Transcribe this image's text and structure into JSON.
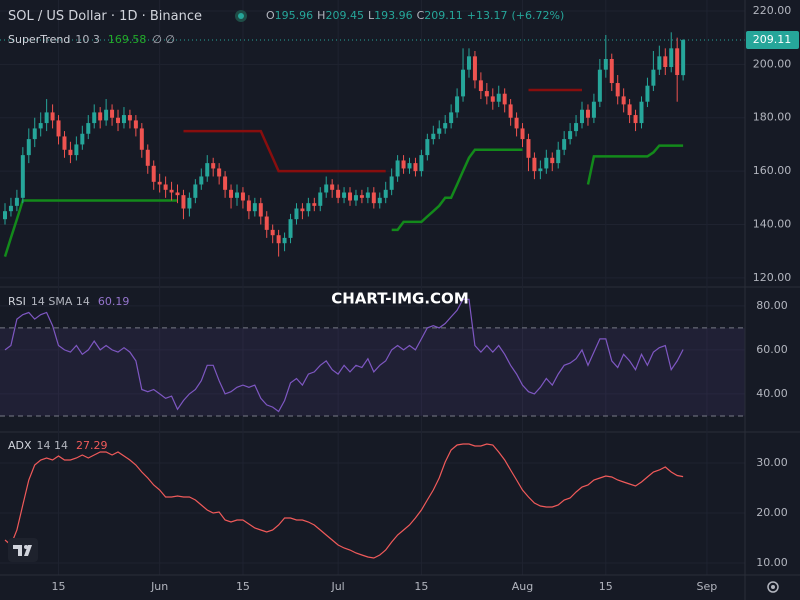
{
  "chart_data": [
    {
      "type": "candlestick",
      "title": "SOL / US Dollar · 1D · Binance",
      "ohlc_letters": [
        "O",
        "H",
        "L",
        "C"
      ],
      "change": {
        "value": 13.17,
        "label": "+13.17"
      },
      "change_pct": {
        "value": 6.72,
        "label": "(+6.72%)"
      },
      "up_color": "#26a69a",
      "down_color": "#ef5350",
      "open": [
        142,
        145,
        147,
        150,
        166,
        172,
        176,
        178,
        182,
        179,
        173,
        168,
        166,
        170,
        174,
        178,
        182,
        179,
        183,
        180,
        178,
        181,
        179,
        176,
        168,
        162,
        156,
        155,
        153,
        152,
        151,
        146,
        150,
        155,
        158,
        163,
        161,
        158,
        153,
        150,
        152,
        149,
        145,
        148,
        143,
        138,
        136,
        133,
        135,
        142,
        146,
        145,
        148,
        147,
        152,
        155,
        153,
        150,
        152,
        149,
        151,
        150,
        152,
        148,
        150,
        153,
        158,
        164,
        161,
        163,
        160,
        166,
        172,
        174,
        176,
        178,
        182,
        188,
        198,
        203,
        194,
        190,
        188,
        186,
        189,
        185,
        180,
        176,
        172,
        165,
        160,
        161,
        165,
        163,
        168,
        172,
        175,
        178,
        183,
        180,
        186,
        198,
        202,
        193,
        188,
        185,
        181,
        178,
        186,
        192,
        198,
        203,
        199,
        206,
        195.96
      ],
      "high": [
        148,
        150,
        153,
        169,
        176,
        180,
        182,
        187,
        185,
        181,
        175,
        171,
        173,
        177,
        181,
        185,
        184,
        187,
        185,
        183,
        184,
        183,
        181,
        178,
        170,
        164,
        159,
        158,
        156,
        155,
        153,
        152,
        157,
        161,
        166,
        165,
        163,
        160,
        155,
        155,
        154,
        151,
        150,
        150,
        145,
        140,
        138,
        137,
        144,
        148,
        148,
        150,
        150,
        154,
        158,
        157,
        155,
        154,
        154,
        153,
        153,
        154,
        154,
        152,
        156,
        161,
        166,
        166,
        165,
        165,
        168,
        174,
        177,
        179,
        181,
        185,
        191,
        206,
        206,
        205,
        197,
        193,
        191,
        192,
        191,
        187,
        182,
        178,
        174,
        167,
        164,
        168,
        167,
        171,
        175,
        178,
        181,
        186,
        185,
        189,
        202,
        211,
        204,
        196,
        191,
        187,
        183,
        188,
        195,
        205,
        207,
        206,
        212,
        210,
        209.45
      ],
      "low": [
        140,
        143,
        145,
        148,
        163,
        169,
        173,
        175,
        176,
        170,
        165,
        163,
        164,
        168,
        172,
        176,
        176,
        177,
        177,
        175,
        176,
        176,
        173,
        165,
        159,
        153,
        152,
        150,
        149,
        148,
        142,
        143,
        148,
        153,
        156,
        158,
        155,
        150,
        146,
        147,
        146,
        142,
        143,
        140,
        135,
        133,
        128,
        130,
        133,
        140,
        142,
        143,
        145,
        145,
        150,
        150,
        148,
        148,
        147,
        147,
        148,
        148,
        146,
        146,
        148,
        151,
        156,
        159,
        159,
        158,
        158,
        164,
        170,
        172,
        174,
        176,
        180,
        186,
        195,
        191,
        187,
        185,
        183,
        184,
        182,
        177,
        173,
        169,
        160,
        157,
        157,
        159,
        160,
        161,
        166,
        170,
        173,
        176,
        177,
        178,
        184,
        195,
        190,
        185,
        182,
        178,
        175,
        176,
        184,
        190,
        196,
        196,
        197,
        186,
        193.96
      ],
      "close": [
        145,
        147,
        150,
        166,
        172,
        176,
        178,
        182,
        179,
        173,
        168,
        166,
        170,
        174,
        178,
        182,
        179,
        183,
        180,
        178,
        181,
        179,
        176,
        168,
        162,
        156,
        155,
        153,
        152,
        151,
        146,
        150,
        155,
        158,
        163,
        161,
        158,
        153,
        150,
        152,
        149,
        145,
        148,
        143,
        138,
        136,
        133,
        135,
        142,
        146,
        145,
        148,
        147,
        152,
        155,
        153,
        150,
        152,
        149,
        151,
        150,
        152,
        148,
        150,
        153,
        158,
        164,
        161,
        163,
        160,
        166,
        172,
        174,
        176,
        178,
        182,
        188,
        198,
        203,
        194,
        190,
        188,
        186,
        189,
        185,
        180,
        176,
        172,
        165,
        160,
        161,
        165,
        163,
        168,
        172,
        175,
        178,
        183,
        180,
        186,
        198,
        202,
        193,
        188,
        185,
        181,
        178,
        186,
        192,
        198,
        203,
        199,
        206,
        196,
        209.11
      ],
      "supertrend": {
        "name": "SuperTrend",
        "params": "10 3",
        "up_color": "#138a1b",
        "down_color": "#880e0e",
        "up": [
          128,
          135,
          142,
          149,
          149,
          149,
          149,
          149,
          149,
          149,
          149,
          149,
          149,
          149,
          149,
          149,
          149,
          149,
          149,
          149,
          149,
          149,
          149,
          149,
          149,
          149,
          149,
          149,
          149,
          149,
          null,
          null,
          null,
          null,
          null,
          null,
          null,
          null,
          null,
          null,
          null,
          null,
          null,
          null,
          null,
          null,
          null,
          null,
          null,
          null,
          null,
          null,
          null,
          null,
          null,
          null,
          null,
          null,
          null,
          null,
          null,
          null,
          null,
          null,
          null,
          138,
          138,
          141,
          141,
          141,
          141,
          143,
          145,
          147,
          150,
          150,
          155,
          160,
          165,
          168,
          168,
          168,
          168,
          168,
          168,
          168,
          168,
          168,
          null,
          null,
          null,
          null,
          null,
          null,
          null,
          null,
          null,
          null,
          155,
          165.5,
          165.5,
          165.5,
          165.5,
          165.5,
          165.5,
          165.5,
          165.5,
          165.5,
          165.5,
          167,
          169.58,
          169.58,
          169.58,
          169.58,
          169.58
        ],
        "down": [
          null,
          null,
          null,
          null,
          null,
          null,
          null,
          null,
          null,
          null,
          null,
          null,
          null,
          null,
          null,
          null,
          null,
          null,
          null,
          null,
          null,
          null,
          null,
          null,
          null,
          null,
          null,
          null,
          null,
          null,
          175,
          175,
          175,
          175,
          175,
          175,
          175,
          175,
          175,
          175,
          175,
          175,
          175,
          175,
          170,
          165,
          160,
          160,
          160,
          160,
          160,
          160,
          160,
          160,
          160,
          160,
          160,
          160,
          160,
          160,
          160,
          160,
          160,
          160,
          160,
          null,
          null,
          null,
          null,
          null,
          null,
          null,
          null,
          null,
          null,
          null,
          null,
          null,
          null,
          null,
          null,
          null,
          null,
          null,
          null,
          null,
          null,
          null,
          190.4,
          190.4,
          190.4,
          190.4,
          190.4,
          190.4,
          190.4,
          190.4,
          190.4,
          190.4,
          null,
          null,
          null,
          null,
          null,
          null,
          null,
          null,
          null,
          null,
          null,
          null,
          null,
          null,
          null,
          null,
          null
        ]
      },
      "xlim": [
        -0.84,
        124.4
      ],
      "ylim": [
        116.6,
        224.1
      ],
      "yticks": [
        {
          "value": 120,
          "label": "120.00"
        },
        {
          "value": 140,
          "label": "140.00"
        },
        {
          "value": 160,
          "label": "160.00"
        },
        {
          "value": 180,
          "label": "180.00"
        },
        {
          "value": 200,
          "label": "200.00"
        },
        {
          "value": 220,
          "label": "220.00"
        }
      ],
      "watermark": "CHART-IMG.COM"
    },
    {
      "type": "line",
      "name": "RSI",
      "params": "14 SMA 14",
      "color": "#7e57c2",
      "bands": [
        30,
        70
      ],
      "values": [
        60,
        62,
        74,
        76,
        77,
        74,
        76,
        77,
        71,
        62,
        60,
        59,
        62,
        58,
        60,
        64,
        60,
        62,
        60,
        59,
        61,
        59,
        55,
        42,
        41,
        42,
        40,
        38,
        39,
        33,
        37,
        40,
        42,
        46,
        53,
        53,
        46,
        40,
        41,
        43,
        44,
        43,
        44,
        38,
        35,
        34,
        32,
        37,
        45,
        47,
        44,
        49,
        50,
        53,
        55,
        51,
        49,
        53,
        50,
        53,
        52,
        56,
        50,
        53,
        55,
        60,
        62,
        60,
        62,
        60,
        65,
        70,
        71,
        70,
        72,
        75,
        78,
        83,
        83,
        62,
        59,
        62,
        59,
        62,
        58,
        53,
        49,
        44,
        41,
        40,
        43,
        47,
        44,
        49,
        53,
        54,
        56,
        60,
        53,
        59,
        65,
        65,
        55,
        52,
        58,
        55,
        51,
        58,
        53,
        59,
        61,
        62,
        51,
        55,
        60.19
      ],
      "xlim": [
        -0.84,
        124.4
      ],
      "ylim": [
        22.7,
        88.6
      ],
      "yticks": [
        {
          "value": 40,
          "label": "40.00"
        },
        {
          "value": 60,
          "label": "60.00"
        },
        {
          "value": 80,
          "label": "80.00"
        }
      ]
    },
    {
      "type": "line",
      "name": "ADX",
      "params": "14 14",
      "color": "#f05a5a",
      "values": [
        14.6,
        13.6,
        16.6,
        21.6,
        26.6,
        29.6,
        30.6,
        31,
        30.6,
        31.4,
        30.6,
        30.6,
        31,
        31.6,
        31,
        31.6,
        32.2,
        32.2,
        31.6,
        32.2,
        31.4,
        30.6,
        29.6,
        28.2,
        27,
        25.6,
        24.6,
        23.2,
        23.2,
        23.4,
        23.2,
        23.2,
        22.6,
        21.6,
        20.6,
        20,
        20.2,
        18.6,
        18.2,
        18.6,
        18.6,
        17.8,
        17,
        16.6,
        16.2,
        16.6,
        17.6,
        19,
        19,
        18.6,
        18.6,
        18.2,
        17.6,
        16.6,
        15.6,
        14.6,
        13.6,
        13,
        12.6,
        12,
        11.6,
        11.2,
        11,
        11.6,
        12.6,
        14.2,
        15.6,
        16.6,
        17.6,
        19,
        20.6,
        22.6,
        24.6,
        27,
        30.2,
        32.6,
        33.6,
        33.8,
        33.8,
        33.4,
        33.4,
        33.8,
        33.6,
        32.2,
        30.6,
        28.6,
        26.6,
        24.6,
        23.2,
        22,
        21.4,
        21.2,
        21.2,
        21.6,
        22.6,
        23,
        24.2,
        25.2,
        25.6,
        26.6,
        27,
        27.4,
        27.2,
        26.6,
        26.2,
        25.8,
        25.4,
        26.2,
        27.2,
        28.2,
        28.6,
        29.2,
        28.2,
        27.5,
        27.29
      ],
      "xlim": [
        -0.84,
        124.4
      ],
      "ylim": [
        7.6,
        36.2
      ],
      "yticks": [
        {
          "value": 10,
          "label": "10.00"
        },
        {
          "value": 20,
          "label": "20.00"
        },
        {
          "value": 30,
          "label": "30.00"
        }
      ],
      "xticks": [
        {
          "value": 9,
          "label": "15"
        },
        {
          "value": 26,
          "label": "Jun"
        },
        {
          "value": 40,
          "label": "15"
        },
        {
          "value": 56,
          "label": "Jul"
        },
        {
          "value": 70,
          "label": "15"
        },
        {
          "value": 87,
          "label": "Aug"
        },
        {
          "value": 101,
          "label": "15"
        },
        {
          "value": 118,
          "label": "Sep"
        }
      ]
    }
  ]
}
